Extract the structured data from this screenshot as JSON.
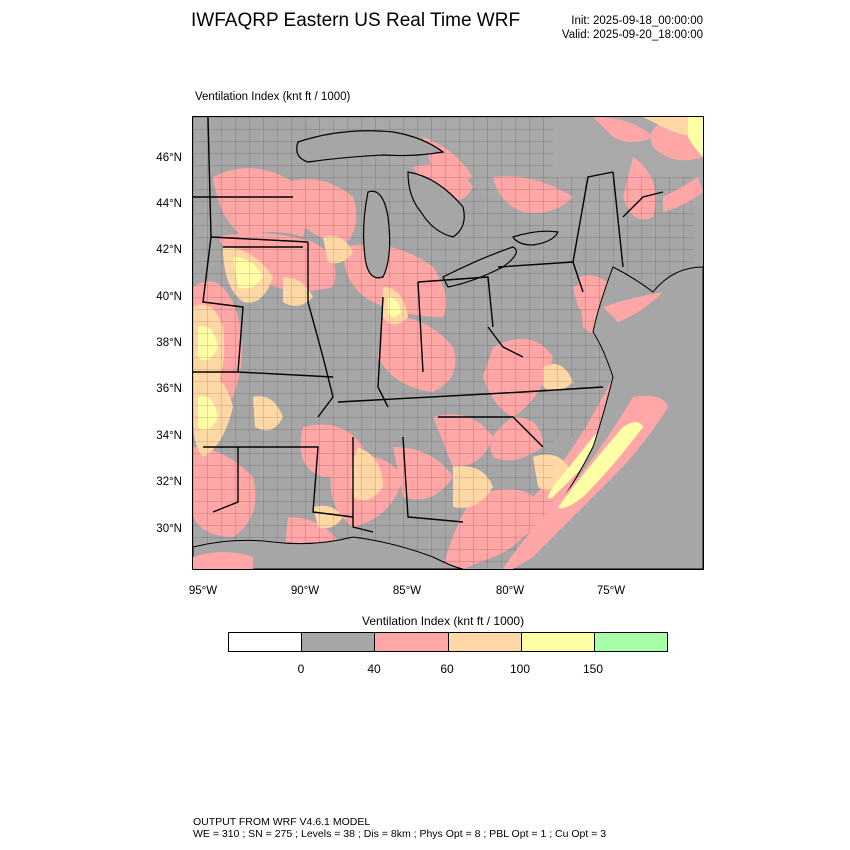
{
  "header": {
    "title": "IWFAQRP Eastern US Real Time WRF",
    "init": "Init: 2025-09-18_00:00:00",
    "valid": "Valid: 2025-09-20_18:00:00"
  },
  "field_label": "Ventilation Index   (knt ft / 1000)",
  "map": {
    "lat_labels": [
      "46°N",
      "44°N",
      "42°N",
      "40°N",
      "38°N",
      "36°N",
      "34°N",
      "32°N",
      "30°N"
    ],
    "lon_labels": [
      "95°W",
      "90°W",
      "85°W",
      "80°W",
      "75°W"
    ],
    "colors": {
      "land_low": "#a6a6a6",
      "pink": "#ffa6a6",
      "orange": "#ffd8a6",
      "yellow": "#ffffa6",
      "green": "#a6ffa6",
      "water": "#a6a6a6"
    }
  },
  "colorbar": {
    "title": "Ventilation Index  (knt ft / 1000)",
    "colors": [
      "#ffffff",
      "#a6a6a6",
      "#ffa6a6",
      "#ffd8a6",
      "#ffffa6",
      "#a6ffa6"
    ],
    "labels": [
      "0",
      "40",
      "60",
      "100",
      "150"
    ]
  },
  "footer": {
    "line1": "OUTPUT FROM WRF V4.6.1 MODEL",
    "line2": "WE = 310 ; SN = 275 ; Levels = 38 ; Dis = 8km ; Phys Opt = 8 ; PBL Opt = 1 ; Cu Opt = 3"
  }
}
